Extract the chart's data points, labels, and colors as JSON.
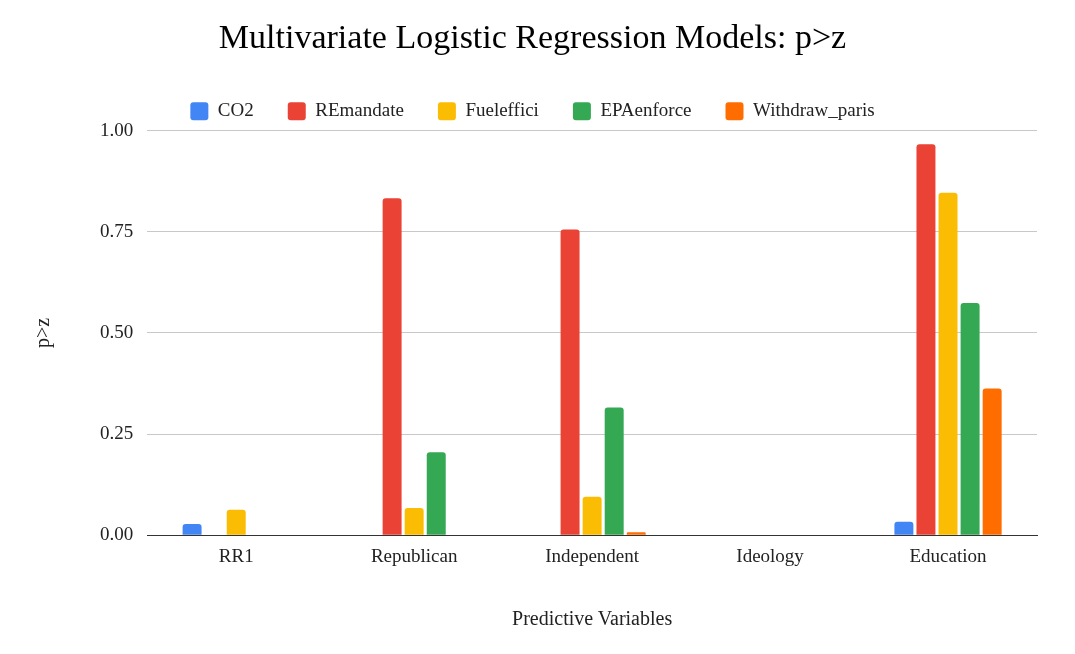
{
  "chart_data": {
    "type": "bar",
    "title": "Multivariate Logistic Regression Models: p>z",
    "xlabel": "Predictive Variables",
    "ylabel": "p>z",
    "categories": [
      "RR1",
      "Republican",
      "Independent",
      "Ideology",
      "Education"
    ],
    "series": [
      {
        "name": "CO2",
        "color": "#4285f4",
        "values": [
          0.028,
          null,
          null,
          null,
          0.033
        ]
      },
      {
        "name": "REmandate",
        "color": "#ea4335",
        "values": [
          null,
          0.833,
          0.756,
          null,
          0.967
        ]
      },
      {
        "name": "Fueleffici",
        "color": "#fbbc04",
        "values": [
          0.063,
          0.067,
          0.095,
          null,
          0.847
        ]
      },
      {
        "name": "EPAenforce",
        "color": "#34a853",
        "values": [
          null,
          0.205,
          0.316,
          null,
          0.574
        ]
      },
      {
        "name": "Withdraw_paris",
        "color": "#ff6d01",
        "values": [
          null,
          null,
          0.007,
          null,
          0.363
        ]
      }
    ],
    "ylim": [
      0,
      1
    ],
    "yticks": [
      {
        "value": 0,
        "label": "0.00"
      },
      {
        "value": 0.25,
        "label": "0.25"
      },
      {
        "value": 0.5,
        "label": "0.50"
      },
      {
        "value": 0.75,
        "label": "0.75"
      },
      {
        "value": 1,
        "label": "1.00"
      }
    ],
    "grid": "y",
    "legend": "top"
  }
}
